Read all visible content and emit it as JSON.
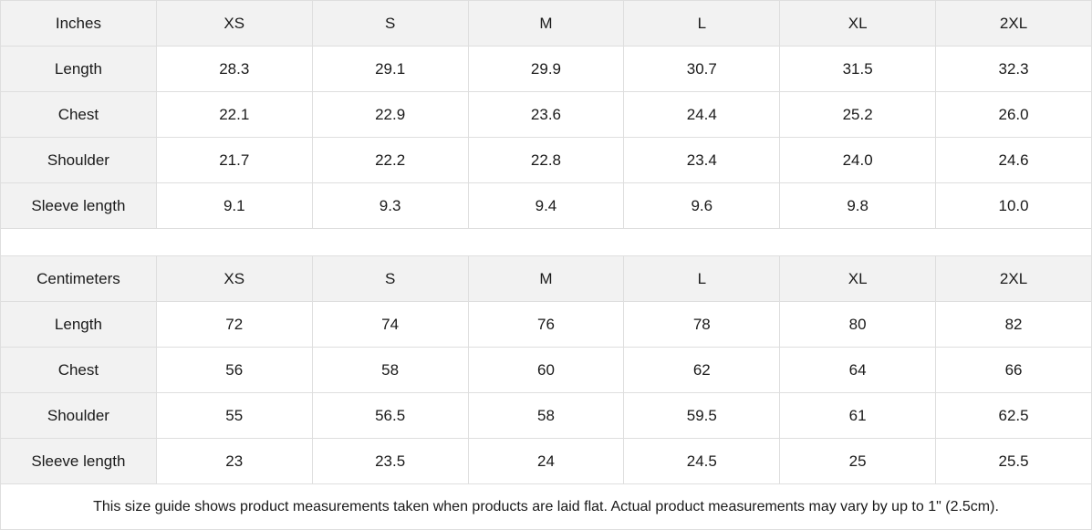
{
  "sizes": [
    "XS",
    "S",
    "M",
    "L",
    "XL",
    "2XL"
  ],
  "tables": [
    {
      "unit": "Inches",
      "rows": [
        {
          "label": "Length",
          "values": [
            "28.3",
            "29.1",
            "29.9",
            "30.7",
            "31.5",
            "32.3"
          ]
        },
        {
          "label": "Chest",
          "values": [
            "22.1",
            "22.9",
            "23.6",
            "24.4",
            "25.2",
            "26.0"
          ]
        },
        {
          "label": "Shoulder",
          "values": [
            "21.7",
            "22.2",
            "22.8",
            "23.4",
            "24.0",
            "24.6"
          ]
        },
        {
          "label": "Sleeve length",
          "values": [
            "9.1",
            "9.3",
            "9.4",
            "9.6",
            "9.8",
            "10.0"
          ]
        }
      ]
    },
    {
      "unit": "Centimeters",
      "rows": [
        {
          "label": "Length",
          "values": [
            "72",
            "74",
            "76",
            "78",
            "80",
            "82"
          ]
        },
        {
          "label": "Chest",
          "values": [
            "56",
            "58",
            "60",
            "62",
            "64",
            "66"
          ]
        },
        {
          "label": "Shoulder",
          "values": [
            "55",
            "56.5",
            "58",
            "59.5",
            "61",
            "62.5"
          ]
        },
        {
          "label": "Sleeve length",
          "values": [
            "23",
            "23.5",
            "24",
            "24.5",
            "25",
            "25.5"
          ]
        }
      ]
    }
  ],
  "note": "This size guide shows product measurements taken when products are laid flat.  Actual product measurements may vary by up to 1\" (2.5cm).",
  "colors": {
    "header_bg": "#f2f2f2",
    "border": "#dedede"
  }
}
